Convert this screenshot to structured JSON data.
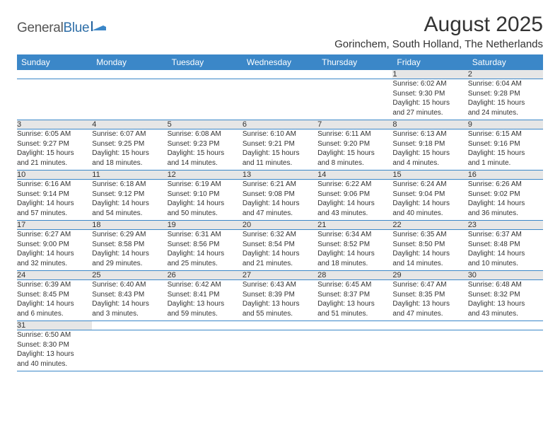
{
  "logo": {
    "general": "General",
    "blue": "Blue"
  },
  "title": "August 2025",
  "location": "Gorinchem, South Holland, The Netherlands",
  "colors": {
    "header_bg": "#3b87c8",
    "header_fg": "#ffffff",
    "daynum_bg": "#e6e6e6",
    "rule": "#3b87c8",
    "text": "#333333",
    "logo_blue": "#2f6fa8",
    "page_bg": "#ffffff"
  },
  "dayNames": [
    "Sunday",
    "Monday",
    "Tuesday",
    "Wednesday",
    "Thursday",
    "Friday",
    "Saturday"
  ],
  "weeks": [
    [
      null,
      null,
      null,
      null,
      null,
      {
        "n": "1",
        "sr": "Sunrise: 6:02 AM",
        "ss": "Sunset: 9:30 PM",
        "d1": "Daylight: 15 hours",
        "d2": "and 27 minutes."
      },
      {
        "n": "2",
        "sr": "Sunrise: 6:04 AM",
        "ss": "Sunset: 9:28 PM",
        "d1": "Daylight: 15 hours",
        "d2": "and 24 minutes."
      }
    ],
    [
      {
        "n": "3",
        "sr": "Sunrise: 6:05 AM",
        "ss": "Sunset: 9:27 PM",
        "d1": "Daylight: 15 hours",
        "d2": "and 21 minutes."
      },
      {
        "n": "4",
        "sr": "Sunrise: 6:07 AM",
        "ss": "Sunset: 9:25 PM",
        "d1": "Daylight: 15 hours",
        "d2": "and 18 minutes."
      },
      {
        "n": "5",
        "sr": "Sunrise: 6:08 AM",
        "ss": "Sunset: 9:23 PM",
        "d1": "Daylight: 15 hours",
        "d2": "and 14 minutes."
      },
      {
        "n": "6",
        "sr": "Sunrise: 6:10 AM",
        "ss": "Sunset: 9:21 PM",
        "d1": "Daylight: 15 hours",
        "d2": "and 11 minutes."
      },
      {
        "n": "7",
        "sr": "Sunrise: 6:11 AM",
        "ss": "Sunset: 9:20 PM",
        "d1": "Daylight: 15 hours",
        "d2": "and 8 minutes."
      },
      {
        "n": "8",
        "sr": "Sunrise: 6:13 AM",
        "ss": "Sunset: 9:18 PM",
        "d1": "Daylight: 15 hours",
        "d2": "and 4 minutes."
      },
      {
        "n": "9",
        "sr": "Sunrise: 6:15 AM",
        "ss": "Sunset: 9:16 PM",
        "d1": "Daylight: 15 hours",
        "d2": "and 1 minute."
      }
    ],
    [
      {
        "n": "10",
        "sr": "Sunrise: 6:16 AM",
        "ss": "Sunset: 9:14 PM",
        "d1": "Daylight: 14 hours",
        "d2": "and 57 minutes."
      },
      {
        "n": "11",
        "sr": "Sunrise: 6:18 AM",
        "ss": "Sunset: 9:12 PM",
        "d1": "Daylight: 14 hours",
        "d2": "and 54 minutes."
      },
      {
        "n": "12",
        "sr": "Sunrise: 6:19 AM",
        "ss": "Sunset: 9:10 PM",
        "d1": "Daylight: 14 hours",
        "d2": "and 50 minutes."
      },
      {
        "n": "13",
        "sr": "Sunrise: 6:21 AM",
        "ss": "Sunset: 9:08 PM",
        "d1": "Daylight: 14 hours",
        "d2": "and 47 minutes."
      },
      {
        "n": "14",
        "sr": "Sunrise: 6:22 AM",
        "ss": "Sunset: 9:06 PM",
        "d1": "Daylight: 14 hours",
        "d2": "and 43 minutes."
      },
      {
        "n": "15",
        "sr": "Sunrise: 6:24 AM",
        "ss": "Sunset: 9:04 PM",
        "d1": "Daylight: 14 hours",
        "d2": "and 40 minutes."
      },
      {
        "n": "16",
        "sr": "Sunrise: 6:26 AM",
        "ss": "Sunset: 9:02 PM",
        "d1": "Daylight: 14 hours",
        "d2": "and 36 minutes."
      }
    ],
    [
      {
        "n": "17",
        "sr": "Sunrise: 6:27 AM",
        "ss": "Sunset: 9:00 PM",
        "d1": "Daylight: 14 hours",
        "d2": "and 32 minutes."
      },
      {
        "n": "18",
        "sr": "Sunrise: 6:29 AM",
        "ss": "Sunset: 8:58 PM",
        "d1": "Daylight: 14 hours",
        "d2": "and 29 minutes."
      },
      {
        "n": "19",
        "sr": "Sunrise: 6:31 AM",
        "ss": "Sunset: 8:56 PM",
        "d1": "Daylight: 14 hours",
        "d2": "and 25 minutes."
      },
      {
        "n": "20",
        "sr": "Sunrise: 6:32 AM",
        "ss": "Sunset: 8:54 PM",
        "d1": "Daylight: 14 hours",
        "d2": "and 21 minutes."
      },
      {
        "n": "21",
        "sr": "Sunrise: 6:34 AM",
        "ss": "Sunset: 8:52 PM",
        "d1": "Daylight: 14 hours",
        "d2": "and 18 minutes."
      },
      {
        "n": "22",
        "sr": "Sunrise: 6:35 AM",
        "ss": "Sunset: 8:50 PM",
        "d1": "Daylight: 14 hours",
        "d2": "and 14 minutes."
      },
      {
        "n": "23",
        "sr": "Sunrise: 6:37 AM",
        "ss": "Sunset: 8:48 PM",
        "d1": "Daylight: 14 hours",
        "d2": "and 10 minutes."
      }
    ],
    [
      {
        "n": "24",
        "sr": "Sunrise: 6:39 AM",
        "ss": "Sunset: 8:45 PM",
        "d1": "Daylight: 14 hours",
        "d2": "and 6 minutes."
      },
      {
        "n": "25",
        "sr": "Sunrise: 6:40 AM",
        "ss": "Sunset: 8:43 PM",
        "d1": "Daylight: 14 hours",
        "d2": "and 3 minutes."
      },
      {
        "n": "26",
        "sr": "Sunrise: 6:42 AM",
        "ss": "Sunset: 8:41 PM",
        "d1": "Daylight: 13 hours",
        "d2": "and 59 minutes."
      },
      {
        "n": "27",
        "sr": "Sunrise: 6:43 AM",
        "ss": "Sunset: 8:39 PM",
        "d1": "Daylight: 13 hours",
        "d2": "and 55 minutes."
      },
      {
        "n": "28",
        "sr": "Sunrise: 6:45 AM",
        "ss": "Sunset: 8:37 PM",
        "d1": "Daylight: 13 hours",
        "d2": "and 51 minutes."
      },
      {
        "n": "29",
        "sr": "Sunrise: 6:47 AM",
        "ss": "Sunset: 8:35 PM",
        "d1": "Daylight: 13 hours",
        "d2": "and 47 minutes."
      },
      {
        "n": "30",
        "sr": "Sunrise: 6:48 AM",
        "ss": "Sunset: 8:32 PM",
        "d1": "Daylight: 13 hours",
        "d2": "and 43 minutes."
      }
    ],
    [
      {
        "n": "31",
        "sr": "Sunrise: 6:50 AM",
        "ss": "Sunset: 8:30 PM",
        "d1": "Daylight: 13 hours",
        "d2": "and 40 minutes."
      },
      null,
      null,
      null,
      null,
      null,
      null
    ]
  ]
}
